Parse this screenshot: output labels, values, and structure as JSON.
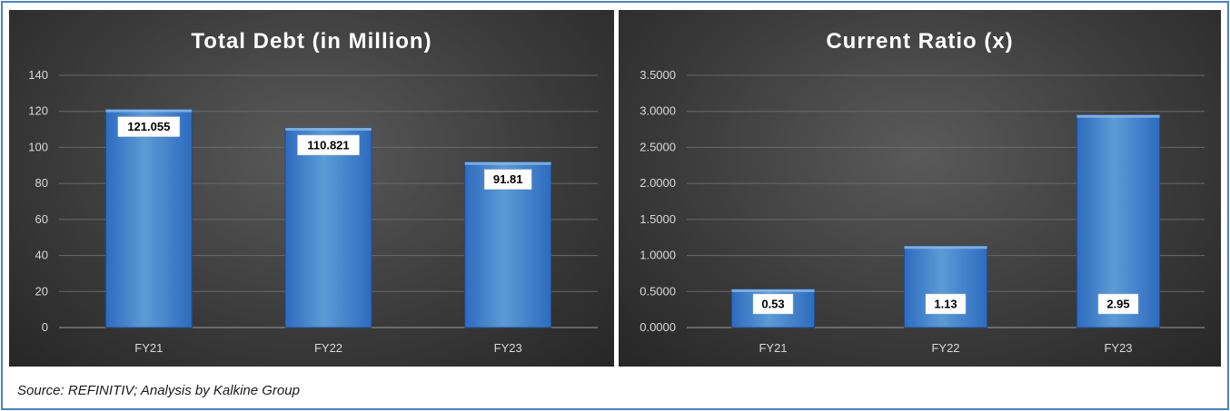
{
  "colors": {
    "bar_top": "#5b9bd5",
    "bar_bottom": "#2e6bbf",
    "bar_stroke": "#1f4e8c",
    "grid": "#6a6a6a",
    "axis": "#9a9a9a",
    "label_bg": "#ffffff"
  },
  "chart_data": [
    {
      "type": "bar",
      "title": "Total Debt (in Million)",
      "categories": [
        "FY21",
        "FY22",
        "FY23"
      ],
      "values": [
        121.055,
        110.821,
        91.81
      ],
      "value_labels": [
        "121.055",
        "110.821",
        "91.81"
      ],
      "yticks": [
        "0",
        "20",
        "40",
        "60",
        "80",
        "100",
        "120",
        "140"
      ],
      "ylim": [
        0,
        140
      ],
      "xlabel": "",
      "ylabel": "",
      "grid": true,
      "legend": "none",
      "label_position": "inside-end"
    },
    {
      "type": "bar",
      "title": "Current Ratio (x)",
      "categories": [
        "FY21",
        "FY22",
        "FY23"
      ],
      "values": [
        0.53,
        1.13,
        2.95
      ],
      "value_labels": [
        "0.53",
        "1.13",
        "2.95"
      ],
      "yticks": [
        "0.0000",
        "0.5000",
        "1.0000",
        "1.5000",
        "2.0000",
        "2.5000",
        "3.0000",
        "3.5000"
      ],
      "ylim": [
        0,
        3.5
      ],
      "xlabel": "",
      "ylabel": "",
      "grid": true,
      "legend": "none",
      "label_position": "inside-base"
    }
  ],
  "footer": {
    "source": "Source: REFINITIV; Analysis by Kalkine Group"
  }
}
